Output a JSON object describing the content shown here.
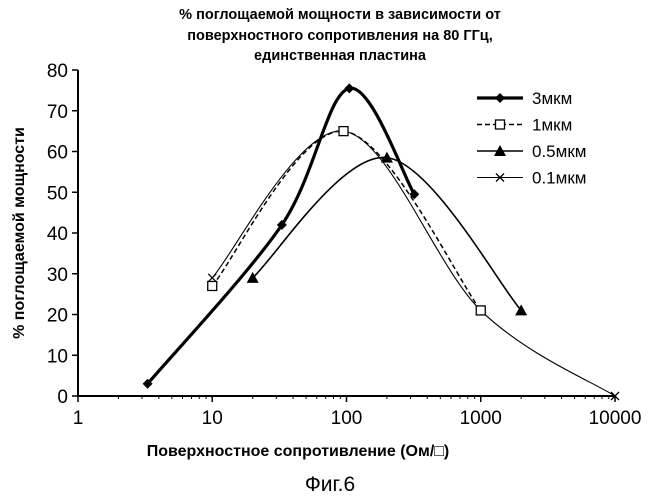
{
  "chart_data": {
    "type": "line",
    "title_lines": [
      "% поглощаемой мощности в зависимости от",
      "поверхностного сопротивления на 80 ГГц,",
      "единственная пластина"
    ],
    "xlabel": "Поверхностное сопротивление (Ом/□)",
    "ylabel": "% поглощаемой мощности",
    "x_scale": "log",
    "xlim": [
      1,
      10000
    ],
    "ylim": [
      0,
      80
    ],
    "x_ticks": [
      1,
      10,
      100,
      1000,
      10000
    ],
    "x_tick_labels": [
      "1",
      "10",
      "100",
      "1000",
      "10000"
    ],
    "y_ticks": [
      0,
      10,
      20,
      30,
      40,
      50,
      60,
      70,
      80
    ],
    "y_tick_labels": [
      "0",
      "10",
      "20",
      "30",
      "40",
      "50",
      "60",
      "70",
      "80"
    ],
    "grid": false,
    "legend_position": "top-right",
    "series": [
      {
        "name": "3мкм",
        "marker": "diamond",
        "line": "solid-thick",
        "x": [
          3.3,
          33,
          105,
          320
        ],
        "y": [
          3,
          42,
          75.5,
          49.5
        ]
      },
      {
        "name": "1мкм",
        "marker": "square",
        "line": "dashed",
        "x": [
          10,
          95,
          1000
        ],
        "y": [
          27,
          65,
          21
        ]
      },
      {
        "name": "0.5мкм",
        "marker": "triangle",
        "line": "solid",
        "x": [
          20,
          200,
          2000
        ],
        "y": [
          29,
          58.5,
          21
        ]
      },
      {
        "name": "0.1мкм",
        "marker": "x",
        "line": "solid-thin",
        "x": [
          10,
          95,
          1000,
          10000
        ],
        "y": [
          29,
          65,
          21,
          0
        ]
      }
    ]
  },
  "figure_caption": "Фиг.6"
}
